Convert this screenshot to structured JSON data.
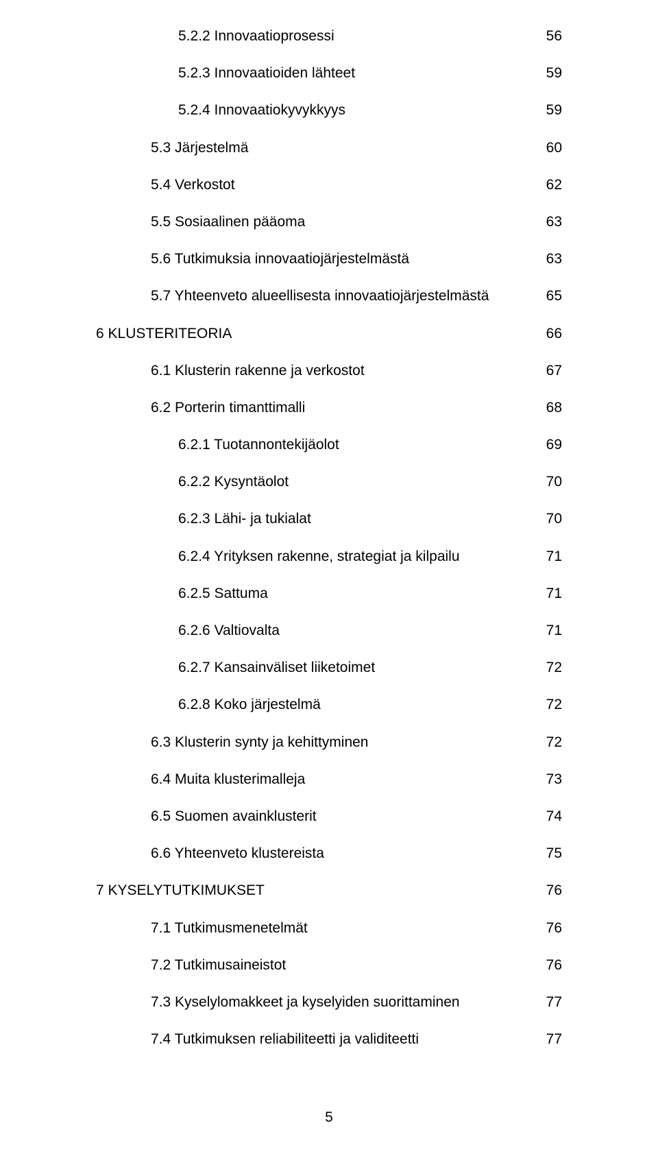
{
  "page_number": "5",
  "font": {
    "family": "Arial",
    "size_pt": 16,
    "color": "#000000",
    "background": "#ffffff"
  },
  "toc": [
    {
      "indent": 3,
      "label": "5.2.2 Innovaatioprosessi",
      "page": "56"
    },
    {
      "indent": 3,
      "label": "5.2.3 Innovaatioiden lähteet",
      "page": "59"
    },
    {
      "indent": 3,
      "label": "5.2.4 Innovaatiokyvykkyys",
      "page": "59"
    },
    {
      "indent": 2,
      "label": "5.3 Järjestelmä",
      "page": "60"
    },
    {
      "indent": 2,
      "label": "5.4 Verkostot",
      "page": "62"
    },
    {
      "indent": 2,
      "label": "5.5 Sosiaalinen pääoma",
      "page": "63"
    },
    {
      "indent": 2,
      "label": "5.6 Tutkimuksia innovaatiojärjestelmästä",
      "page": "63"
    },
    {
      "indent": 2,
      "label": "5.7 Yhteenveto alueellisesta innovaatiojärjestelmästä",
      "page": "65"
    },
    {
      "indent": 0,
      "label": "6 KLUSTERITEORIA",
      "page": "66"
    },
    {
      "indent": 2,
      "label": "6.1 Klusterin rakenne ja verkostot",
      "page": "67"
    },
    {
      "indent": 2,
      "label": "6.2 Porterin timanttimalli",
      "page": "68"
    },
    {
      "indent": 3,
      "label": "6.2.1 Tuotannontekijäolot",
      "page": "69"
    },
    {
      "indent": 3,
      "label": "6.2.2 Kysyntäolot",
      "page": "70"
    },
    {
      "indent": 3,
      "label": "6.2.3 Lähi- ja tukialat",
      "page": "70"
    },
    {
      "indent": 3,
      "label": "6.2.4 Yrityksen rakenne, strategiat ja kilpailu",
      "page": "71"
    },
    {
      "indent": 3,
      "label": "6.2.5 Sattuma",
      "page": "71"
    },
    {
      "indent": 3,
      "label": "6.2.6 Valtiovalta",
      "page": "71"
    },
    {
      "indent": 3,
      "label": "6.2.7 Kansainväliset liiketoimet",
      "page": "72"
    },
    {
      "indent": 3,
      "label": "6.2.8 Koko järjestelmä",
      "page": "72"
    },
    {
      "indent": 2,
      "label": "6.3 Klusterin synty ja kehittyminen",
      "page": "72"
    },
    {
      "indent": 2,
      "label": "6.4 Muita klusterimalleja",
      "page": "73"
    },
    {
      "indent": 2,
      "label": "6.5 Suomen avainklusterit",
      "page": "74"
    },
    {
      "indent": 2,
      "label": "6.6 Yhteenveto klustereista",
      "page": "75"
    },
    {
      "indent": 0,
      "label": "7 KYSELYTUTKIMUKSET",
      "page": "76"
    },
    {
      "indent": 2,
      "label": "7.1 Tutkimusmenetelmät",
      "page": "76"
    },
    {
      "indent": 2,
      "label": "7.2 Tutkimusaineistot",
      "page": "76"
    },
    {
      "indent": 2,
      "label": "7.3 Kyselylomakkeet ja kyselyiden suorittaminen",
      "page": "77"
    },
    {
      "indent": 2,
      "label": "7.4 Tutkimuksen reliabiliteetti ja validiteetti",
      "page": "77"
    }
  ]
}
